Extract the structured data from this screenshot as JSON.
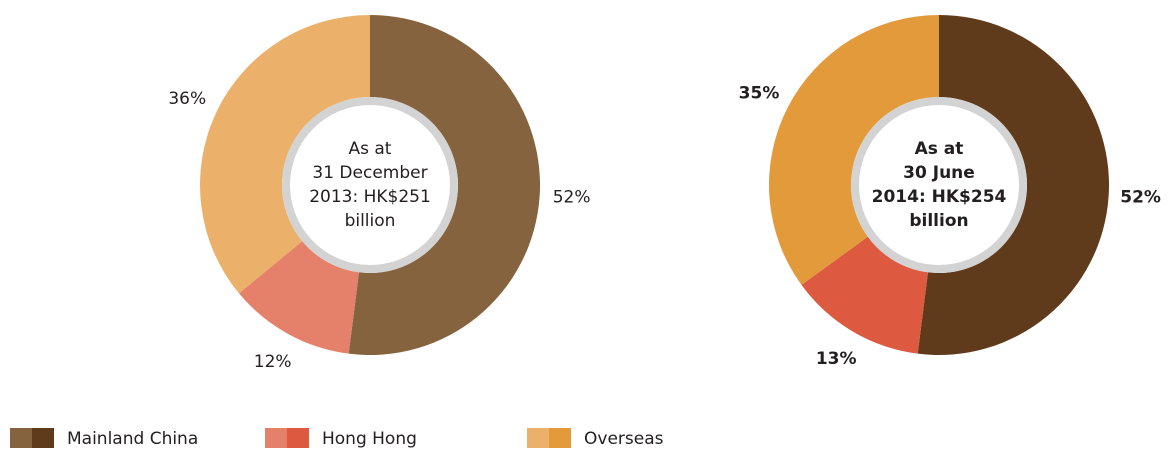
{
  "chart_data": [
    {
      "type": "pie",
      "values": [
        52,
        12,
        36
      ],
      "value_labels": [
        "52%",
        "12%",
        "36%"
      ],
      "colors": [
        "#86633f",
        "#e5806a",
        "#ebb06a"
      ],
      "center_label": [
        "As at",
        "31 December",
        "2013: HK$251",
        "billion"
      ],
      "bold": false
    },
    {
      "type": "pie",
      "values": [
        52,
        13,
        35
      ],
      "value_labels": [
        "52%",
        "13%",
        "35%"
      ],
      "colors": [
        "#5f3b1c",
        "#dd5940",
        "#e39a3a"
      ],
      "center_label": [
        "As at",
        "30 June",
        "2014: HK$254",
        "billion"
      ],
      "bold": true
    }
  ],
  "legend": [
    "Mainland China",
    "Hong Hong",
    "Overseas"
  ]
}
